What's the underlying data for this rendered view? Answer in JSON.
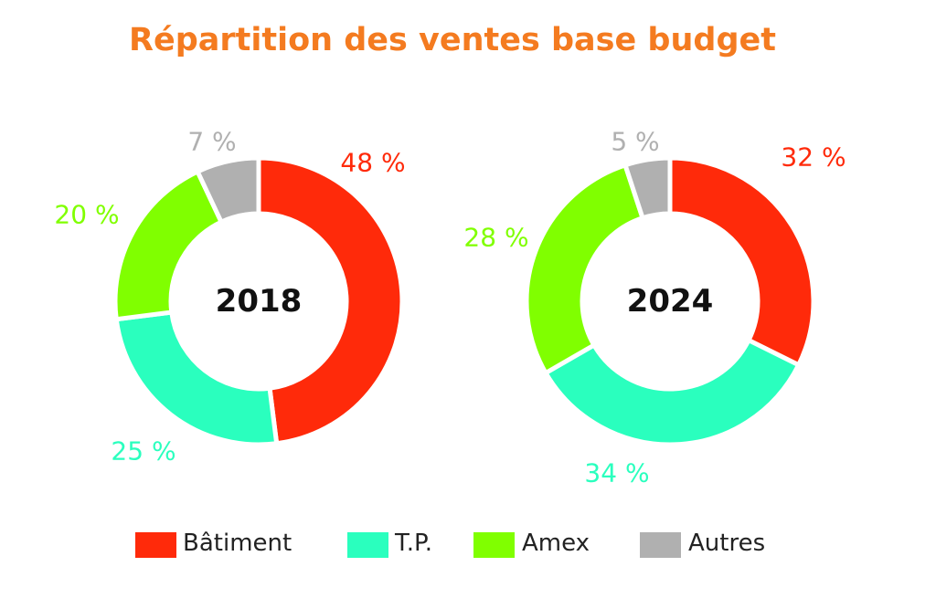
{
  "chart_data": {
    "type": "pie",
    "variant": "donut",
    "title": "Répartition des ventes base budget",
    "categories": [
      "Bâtiment",
      "T.P.",
      "Amex",
      "Autres"
    ],
    "colors": [
      "#FF2A0A",
      "#2AFFBE",
      "#80FF00",
      "#B0B0B0"
    ],
    "charts": [
      {
        "label": "2018",
        "values": [
          48,
          25,
          20,
          7
        ],
        "value_labels": [
          "48 %",
          "25 %",
          "20 %",
          "7 %"
        ]
      },
      {
        "label": "2024",
        "values": [
          32,
          34,
          28,
          5
        ],
        "value_labels": [
          "32 %",
          "34 %",
          "28 %",
          "5 %"
        ]
      }
    ],
    "legend": "bottom",
    "title_color": "#F47B20"
  }
}
